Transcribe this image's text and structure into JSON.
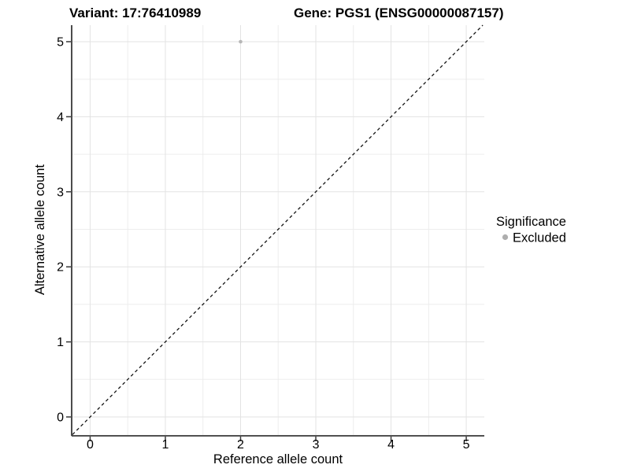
{
  "chart_data": {
    "type": "scatter",
    "titles": {
      "left": "Variant: 17:76410989",
      "right": "Gene: PGS1 (ENSG00000087157)"
    },
    "xlabel": "Reference allele count",
    "ylabel": "Alternative allele count",
    "xlim": [
      -0.235,
      5.24
    ],
    "ylim": [
      -0.241,
      5.22
    ],
    "xticks": [
      0,
      1,
      2,
      3,
      4,
      5
    ],
    "yticks": [
      0,
      1,
      2,
      3,
      4,
      5
    ],
    "grid": {
      "major": true,
      "minor": true,
      "minor_step": 0.5
    },
    "points": [
      {
        "x": 2,
        "y": 5,
        "series": "Excluded"
      }
    ],
    "series": [
      {
        "name": "Excluded",
        "color": "#b7b7b7"
      }
    ],
    "reference_line": {
      "type": "identity",
      "style": "dashed",
      "color": "#141414"
    },
    "legend": {
      "title": "Significance",
      "position": "right",
      "entries": [
        {
          "label": "Excluded",
          "color": "#aeaeae"
        }
      ]
    },
    "colors": {
      "grid_major": "#e3e3e3",
      "grid_minor": "#ededed",
      "axis_line": "#383838",
      "tick_mark": "#383838",
      "background": "#ffffff"
    }
  }
}
